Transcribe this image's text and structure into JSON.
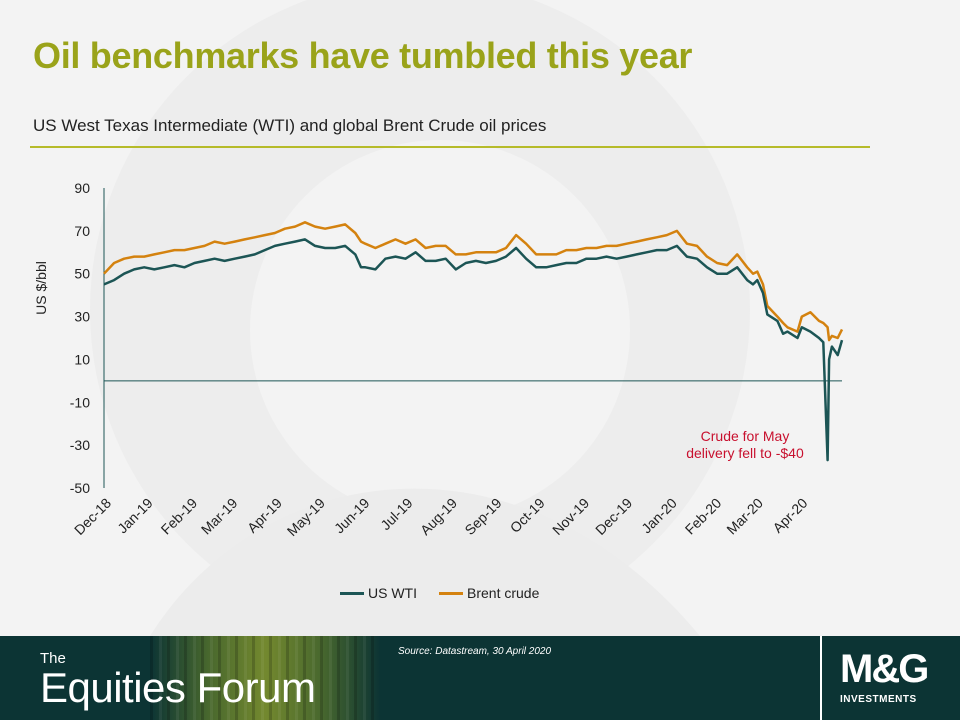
{
  "title": "Oil benchmarks have tumbled this year",
  "subtitle": "US West Texas Intermediate (WTI) and global Brent Crude oil prices",
  "annotation": {
    "line1": "Crude for May",
    "line2": "delivery fell to -$40"
  },
  "footer": {
    "brand_small": "The",
    "brand_big": "Equities Forum",
    "source": "Source: Datastream, 30 April 2020",
    "logo": "M&G",
    "logo_sub": "INVESTMENTS"
  },
  "colors": {
    "title": "#9aa31a",
    "wti": "#1c5555",
    "brent": "#d4820f",
    "annotation": "#c8102e",
    "footer_bg": "#0c3434"
  },
  "chart_data": {
    "type": "line",
    "ylabel": "US $/bbl",
    "ylim": [
      -50,
      90
    ],
    "yticks": [
      90,
      70,
      50,
      30,
      10,
      -10,
      -30,
      -50
    ],
    "xticks": [
      "Dec-18",
      "Jan-19",
      "Feb-19",
      "Mar-19",
      "Apr-19",
      "May-19",
      "Jun-19",
      "Jul-19",
      "Aug-19",
      "Sep-19",
      "Oct-19",
      "Nov-19",
      "Dec-19",
      "Jan-20",
      "Feb-20",
      "Mar-20",
      "Apr-20"
    ],
    "xlim": [
      "2018-12-03",
      "2020-04-30"
    ],
    "legend_position": "bottom",
    "grid": false,
    "series": [
      {
        "name": "US WTI",
        "points": [
          [
            "2018-12-03",
            45
          ],
          [
            "2018-12-10",
            47
          ],
          [
            "2018-12-17",
            50
          ],
          [
            "2018-12-24",
            52
          ],
          [
            "2018-12-31",
            53
          ],
          [
            "2019-01-07",
            52
          ],
          [
            "2019-01-14",
            53
          ],
          [
            "2019-01-21",
            54
          ],
          [
            "2019-01-28",
            53
          ],
          [
            "2019-02-04",
            55
          ],
          [
            "2019-02-11",
            56
          ],
          [
            "2019-02-18",
            57
          ],
          [
            "2019-02-25",
            56
          ],
          [
            "2019-03-04",
            57
          ],
          [
            "2019-03-11",
            58
          ],
          [
            "2019-03-18",
            59
          ],
          [
            "2019-03-25",
            61
          ],
          [
            "2019-04-01",
            63
          ],
          [
            "2019-04-08",
            64
          ],
          [
            "2019-04-15",
            65
          ],
          [
            "2019-04-22",
            66
          ],
          [
            "2019-04-29",
            63
          ],
          [
            "2019-05-06",
            62
          ],
          [
            "2019-05-13",
            62
          ],
          [
            "2019-05-20",
            63
          ],
          [
            "2019-05-27",
            59
          ],
          [
            "2019-05-31",
            53
          ],
          [
            "2019-06-03",
            53
          ],
          [
            "2019-06-10",
            52
          ],
          [
            "2019-06-17",
            57
          ],
          [
            "2019-06-24",
            58
          ],
          [
            "2019-07-01",
            57
          ],
          [
            "2019-07-08",
            60
          ],
          [
            "2019-07-15",
            56
          ],
          [
            "2019-07-22",
            56
          ],
          [
            "2019-07-29",
            57
          ],
          [
            "2019-08-05",
            52
          ],
          [
            "2019-08-12",
            55
          ],
          [
            "2019-08-19",
            56
          ],
          [
            "2019-08-26",
            55
          ],
          [
            "2019-09-02",
            56
          ],
          [
            "2019-09-09",
            58
          ],
          [
            "2019-09-16",
            62
          ],
          [
            "2019-09-23",
            57
          ],
          [
            "2019-09-30",
            53
          ],
          [
            "2019-10-07",
            53
          ],
          [
            "2019-10-14",
            54
          ],
          [
            "2019-10-21",
            55
          ],
          [
            "2019-10-28",
            55
          ],
          [
            "2019-11-04",
            57
          ],
          [
            "2019-11-11",
            57
          ],
          [
            "2019-11-18",
            58
          ],
          [
            "2019-11-25",
            57
          ],
          [
            "2019-12-02",
            58
          ],
          [
            "2019-12-09",
            59
          ],
          [
            "2019-12-16",
            60
          ],
          [
            "2019-12-23",
            61
          ],
          [
            "2019-12-30",
            61
          ],
          [
            "2020-01-06",
            63
          ],
          [
            "2020-01-13",
            58
          ],
          [
            "2020-01-20",
            57
          ],
          [
            "2020-01-27",
            53
          ],
          [
            "2020-02-03",
            50
          ],
          [
            "2020-02-10",
            50
          ],
          [
            "2020-02-17",
            53
          ],
          [
            "2020-02-24",
            47
          ],
          [
            "2020-02-28",
            45
          ],
          [
            "2020-03-02",
            47
          ],
          [
            "2020-03-06",
            41
          ],
          [
            "2020-03-09",
            31
          ],
          [
            "2020-03-16",
            28
          ],
          [
            "2020-03-20",
            22
          ],
          [
            "2020-03-23",
            23
          ],
          [
            "2020-03-30",
            20
          ],
          [
            "2020-04-02",
            25
          ],
          [
            "2020-04-08",
            23
          ],
          [
            "2020-04-14",
            20
          ],
          [
            "2020-04-17",
            18
          ],
          [
            "2020-04-20",
            -37
          ],
          [
            "2020-04-21",
            10
          ],
          [
            "2020-04-23",
            16
          ],
          [
            "2020-04-27",
            12
          ],
          [
            "2020-04-30",
            19
          ]
        ]
      },
      {
        "name": "Brent crude",
        "points": [
          [
            "2018-12-03",
            50
          ],
          [
            "2018-12-10",
            55
          ],
          [
            "2018-12-17",
            57
          ],
          [
            "2018-12-24",
            58
          ],
          [
            "2018-12-31",
            58
          ],
          [
            "2019-01-07",
            59
          ],
          [
            "2019-01-14",
            60
          ],
          [
            "2019-01-21",
            61
          ],
          [
            "2019-01-28",
            61
          ],
          [
            "2019-02-04",
            62
          ],
          [
            "2019-02-11",
            63
          ],
          [
            "2019-02-18",
            65
          ],
          [
            "2019-02-25",
            64
          ],
          [
            "2019-03-04",
            65
          ],
          [
            "2019-03-11",
            66
          ],
          [
            "2019-03-18",
            67
          ],
          [
            "2019-03-25",
            68
          ],
          [
            "2019-04-01",
            69
          ],
          [
            "2019-04-08",
            71
          ],
          [
            "2019-04-15",
            72
          ],
          [
            "2019-04-22",
            74
          ],
          [
            "2019-04-29",
            72
          ],
          [
            "2019-05-06",
            71
          ],
          [
            "2019-05-13",
            72
          ],
          [
            "2019-05-20",
            73
          ],
          [
            "2019-05-27",
            69
          ],
          [
            "2019-05-31",
            65
          ],
          [
            "2019-06-03",
            64
          ],
          [
            "2019-06-10",
            62
          ],
          [
            "2019-06-17",
            64
          ],
          [
            "2019-06-24",
            66
          ],
          [
            "2019-07-01",
            64
          ],
          [
            "2019-07-08",
            66
          ],
          [
            "2019-07-15",
            62
          ],
          [
            "2019-07-22",
            63
          ],
          [
            "2019-07-29",
            63
          ],
          [
            "2019-08-05",
            59
          ],
          [
            "2019-08-12",
            59
          ],
          [
            "2019-08-19",
            60
          ],
          [
            "2019-08-26",
            60
          ],
          [
            "2019-09-02",
            60
          ],
          [
            "2019-09-09",
            62
          ],
          [
            "2019-09-16",
            68
          ],
          [
            "2019-09-23",
            64
          ],
          [
            "2019-09-30",
            59
          ],
          [
            "2019-10-07",
            59
          ],
          [
            "2019-10-14",
            59
          ],
          [
            "2019-10-21",
            61
          ],
          [
            "2019-10-28",
            61
          ],
          [
            "2019-11-04",
            62
          ],
          [
            "2019-11-11",
            62
          ],
          [
            "2019-11-18",
            63
          ],
          [
            "2019-11-25",
            63
          ],
          [
            "2019-12-02",
            64
          ],
          [
            "2019-12-09",
            65
          ],
          [
            "2019-12-16",
            66
          ],
          [
            "2019-12-23",
            67
          ],
          [
            "2019-12-30",
            68
          ],
          [
            "2020-01-06",
            70
          ],
          [
            "2020-01-13",
            64
          ],
          [
            "2020-01-20",
            63
          ],
          [
            "2020-01-27",
            58
          ],
          [
            "2020-02-03",
            55
          ],
          [
            "2020-02-10",
            54
          ],
          [
            "2020-02-17",
            59
          ],
          [
            "2020-02-24",
            53
          ],
          [
            "2020-02-28",
            50
          ],
          [
            "2020-03-02",
            51
          ],
          [
            "2020-03-06",
            45
          ],
          [
            "2020-03-09",
            35
          ],
          [
            "2020-03-16",
            30
          ],
          [
            "2020-03-20",
            27
          ],
          [
            "2020-03-23",
            25
          ],
          [
            "2020-03-30",
            23
          ],
          [
            "2020-04-02",
            30
          ],
          [
            "2020-04-08",
            32
          ],
          [
            "2020-04-14",
            28
          ],
          [
            "2020-04-17",
            27
          ],
          [
            "2020-04-20",
            25
          ],
          [
            "2020-04-21",
            19
          ],
          [
            "2020-04-23",
            21
          ],
          [
            "2020-04-27",
            20
          ],
          [
            "2020-04-30",
            24
          ]
        ]
      }
    ],
    "annotation": {
      "text": "Crude for May delivery fell to -$40",
      "x": "2020-04-20",
      "y": -40
    }
  }
}
